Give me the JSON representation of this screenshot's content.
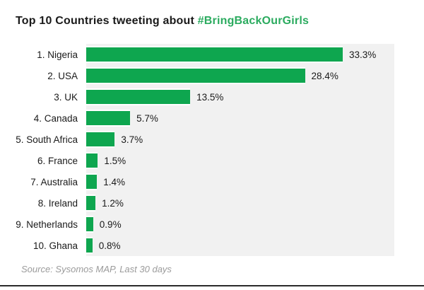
{
  "title": {
    "prefix": "Top 10 Countries tweeting about ",
    "hashtag": "#BringBackOurGirls"
  },
  "source": "Source: Sysomos MAP, Last 30 days",
  "colors": {
    "bar_green": "#0ea64f",
    "hashtag_green": "#2bab5f",
    "plot_background": "#f1f1f1",
    "title_text": "#1a1a1a",
    "source_gray": "#9b9b9b",
    "bottom_rule": "#2a2a2a"
  },
  "chart_data": {
    "type": "bar",
    "orientation": "horizontal",
    "title": "Top 10 Countries tweeting about #BringBackOurGirls",
    "categories": [
      "1. Nigeria",
      "2. USA",
      "3. UK",
      "4. Canada",
      "5. South Africa",
      "6. France",
      "7. Australia",
      "8. Ireland",
      "9. Netherlands",
      "10. Ghana"
    ],
    "values": [
      33.3,
      28.4,
      13.5,
      5.7,
      3.7,
      1.5,
      1.4,
      1.2,
      0.9,
      0.8
    ],
    "value_labels": [
      "33.3%",
      "28.4%",
      "13.5%",
      "5.7%",
      "3.7%",
      "1.5%",
      "1.4%",
      "1.2%",
      "0.9%",
      "0.8%"
    ],
    "xlabel": "",
    "ylabel": "",
    "xlim": [
      0,
      40
    ],
    "grid": false,
    "legend": false,
    "annotation": "Source: Sysomos MAP, Last 30 days"
  }
}
